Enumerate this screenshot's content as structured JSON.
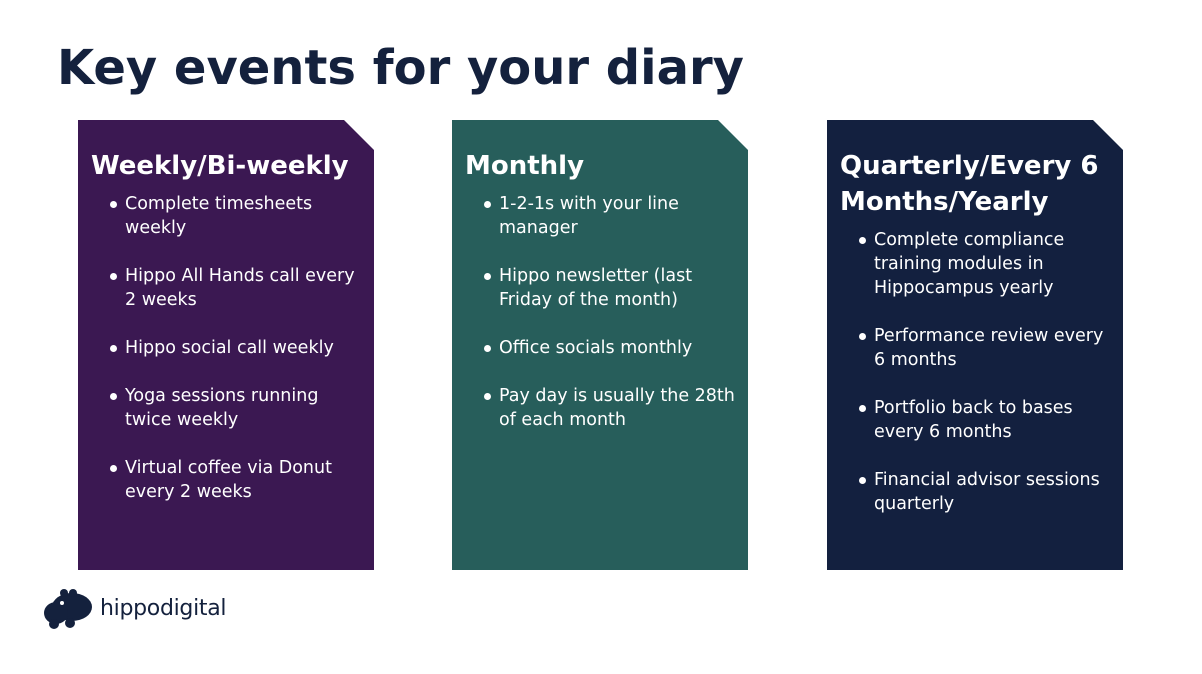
{
  "title": "Key events for your diary",
  "cards": [
    {
      "heading": "Weekly/Bi-weekly",
      "items": [
        "Complete timesheets weekly",
        "Hippo All Hands call every 2 weeks",
        "Hippo social call weekly",
        "Yoga sessions running twice weekly",
        "Virtual coffee via Donut every 2 weeks"
      ],
      "color": "#3b1852"
    },
    {
      "heading": "Monthly",
      "items": [
        "1-2-1s with your line manager",
        "Hippo newsletter (last Friday of the month)",
        "Office socials monthly",
        "Pay day is usually the 28th of each month"
      ],
      "color": "#275e5b"
    },
    {
      "heading": "Quarterly/Every 6 Months/Yearly",
      "items": [
        "Complete compliance training modules in Hippocampus yearly",
        "Performance review every 6 months",
        "Portfolio back to bases every 6 months",
        "Financial advisor sessions quarterly"
      ],
      "color": "#13203f"
    }
  ],
  "logo": {
    "text": "hippodigital",
    "icon": "hippo-logo-icon"
  },
  "colors": {
    "title": "#14213d",
    "background": "#ffffff"
  }
}
